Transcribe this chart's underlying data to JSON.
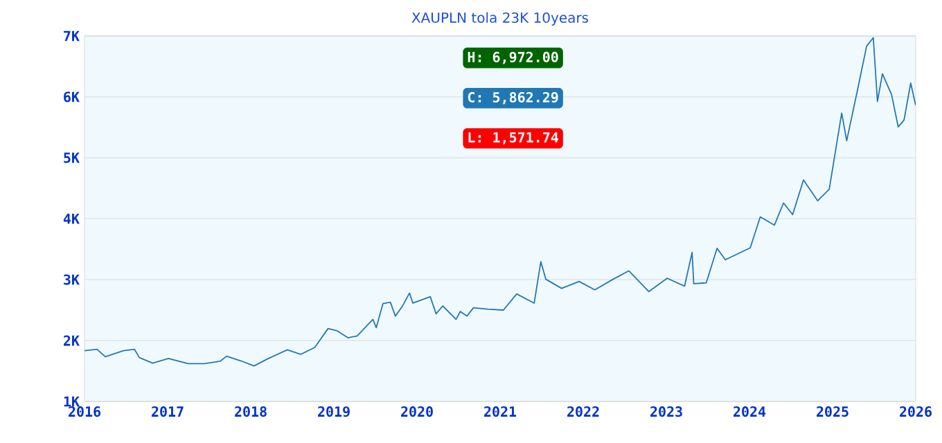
{
  "chart_data": {
    "type": "line",
    "title": "XAUPLN tola 23K 10years",
    "x": [
      2016.0,
      2016.15,
      2016.25,
      2016.47,
      2016.6,
      2016.66,
      2016.82,
      2017.01,
      2017.25,
      2017.44,
      2017.63,
      2017.71,
      2017.88,
      2018.04,
      2018.2,
      2018.44,
      2018.6,
      2018.77,
      2018.93,
      2019.04,
      2019.17,
      2019.28,
      2019.47,
      2019.51,
      2019.59,
      2019.68,
      2019.74,
      2019.82,
      2019.91,
      2019.95,
      2020.16,
      2020.23,
      2020.31,
      2020.47,
      2020.52,
      2020.6,
      2020.68,
      2020.85,
      2021.04,
      2021.2,
      2021.41,
      2021.49,
      2021.55,
      2021.74,
      2021.95,
      2022.14,
      2022.36,
      2022.55,
      2022.79,
      2023.01,
      2023.22,
      2023.31,
      2023.33,
      2023.48,
      2023.61,
      2023.71,
      2024.01,
      2024.13,
      2024.3,
      2024.41,
      2024.52,
      2024.65,
      2024.82,
      2024.96,
      2025.11,
      2025.17,
      2025.3,
      2025.41,
      2025.49,
      2025.54,
      2025.6,
      2025.71,
      2025.79,
      2025.86,
      2025.94,
      2026.0
    ],
    "values": [
      1834,
      1857,
      1734,
      1834,
      1857,
      1720,
      1629,
      1705,
      1621,
      1621,
      1659,
      1743,
      1667,
      1584,
      1697,
      1848,
      1773,
      1886,
      2197,
      2159,
      2045,
      2076,
      2348,
      2211,
      2606,
      2629,
      2402,
      2553,
      2780,
      2614,
      2720,
      2439,
      2568,
      2348,
      2477,
      2402,
      2538,
      2515,
      2500,
      2765,
      2614,
      3295,
      3007,
      2856,
      2970,
      2833,
      3007,
      3144,
      2803,
      3023,
      2894,
      3447,
      2932,
      2947,
      3515,
      3326,
      3523,
      4030,
      3894,
      4258,
      4068,
      4636,
      4295,
      4485,
      5735,
      5280,
      6114,
      6834,
      6972,
      5925,
      6380,
      6039,
      5507,
      5620,
      6227,
      5862
    ],
    "color": "#2378b5",
    "xlim": [
      2016,
      2026
    ],
    "xticks": [
      2016,
      2017,
      2018,
      2019,
      2020,
      2021,
      2022,
      2023,
      2024,
      2025,
      2026
    ],
    "ylim": [
      1000,
      7000
    ],
    "yticks": [
      {
        "value": 1000,
        "label": "1K"
      },
      {
        "value": 2000,
        "label": "2K"
      },
      {
        "value": 3000,
        "label": "3K"
      },
      {
        "value": 4000,
        "label": "4K"
      },
      {
        "value": 5000,
        "label": "5K"
      },
      {
        "value": 6000,
        "label": "6K"
      },
      {
        "value": 7000,
        "label": "7K"
      }
    ],
    "grid": "y",
    "annotations": [
      "H: 6,972.00",
      "C: 5,862.29",
      "L: 1,571.74"
    ]
  }
}
